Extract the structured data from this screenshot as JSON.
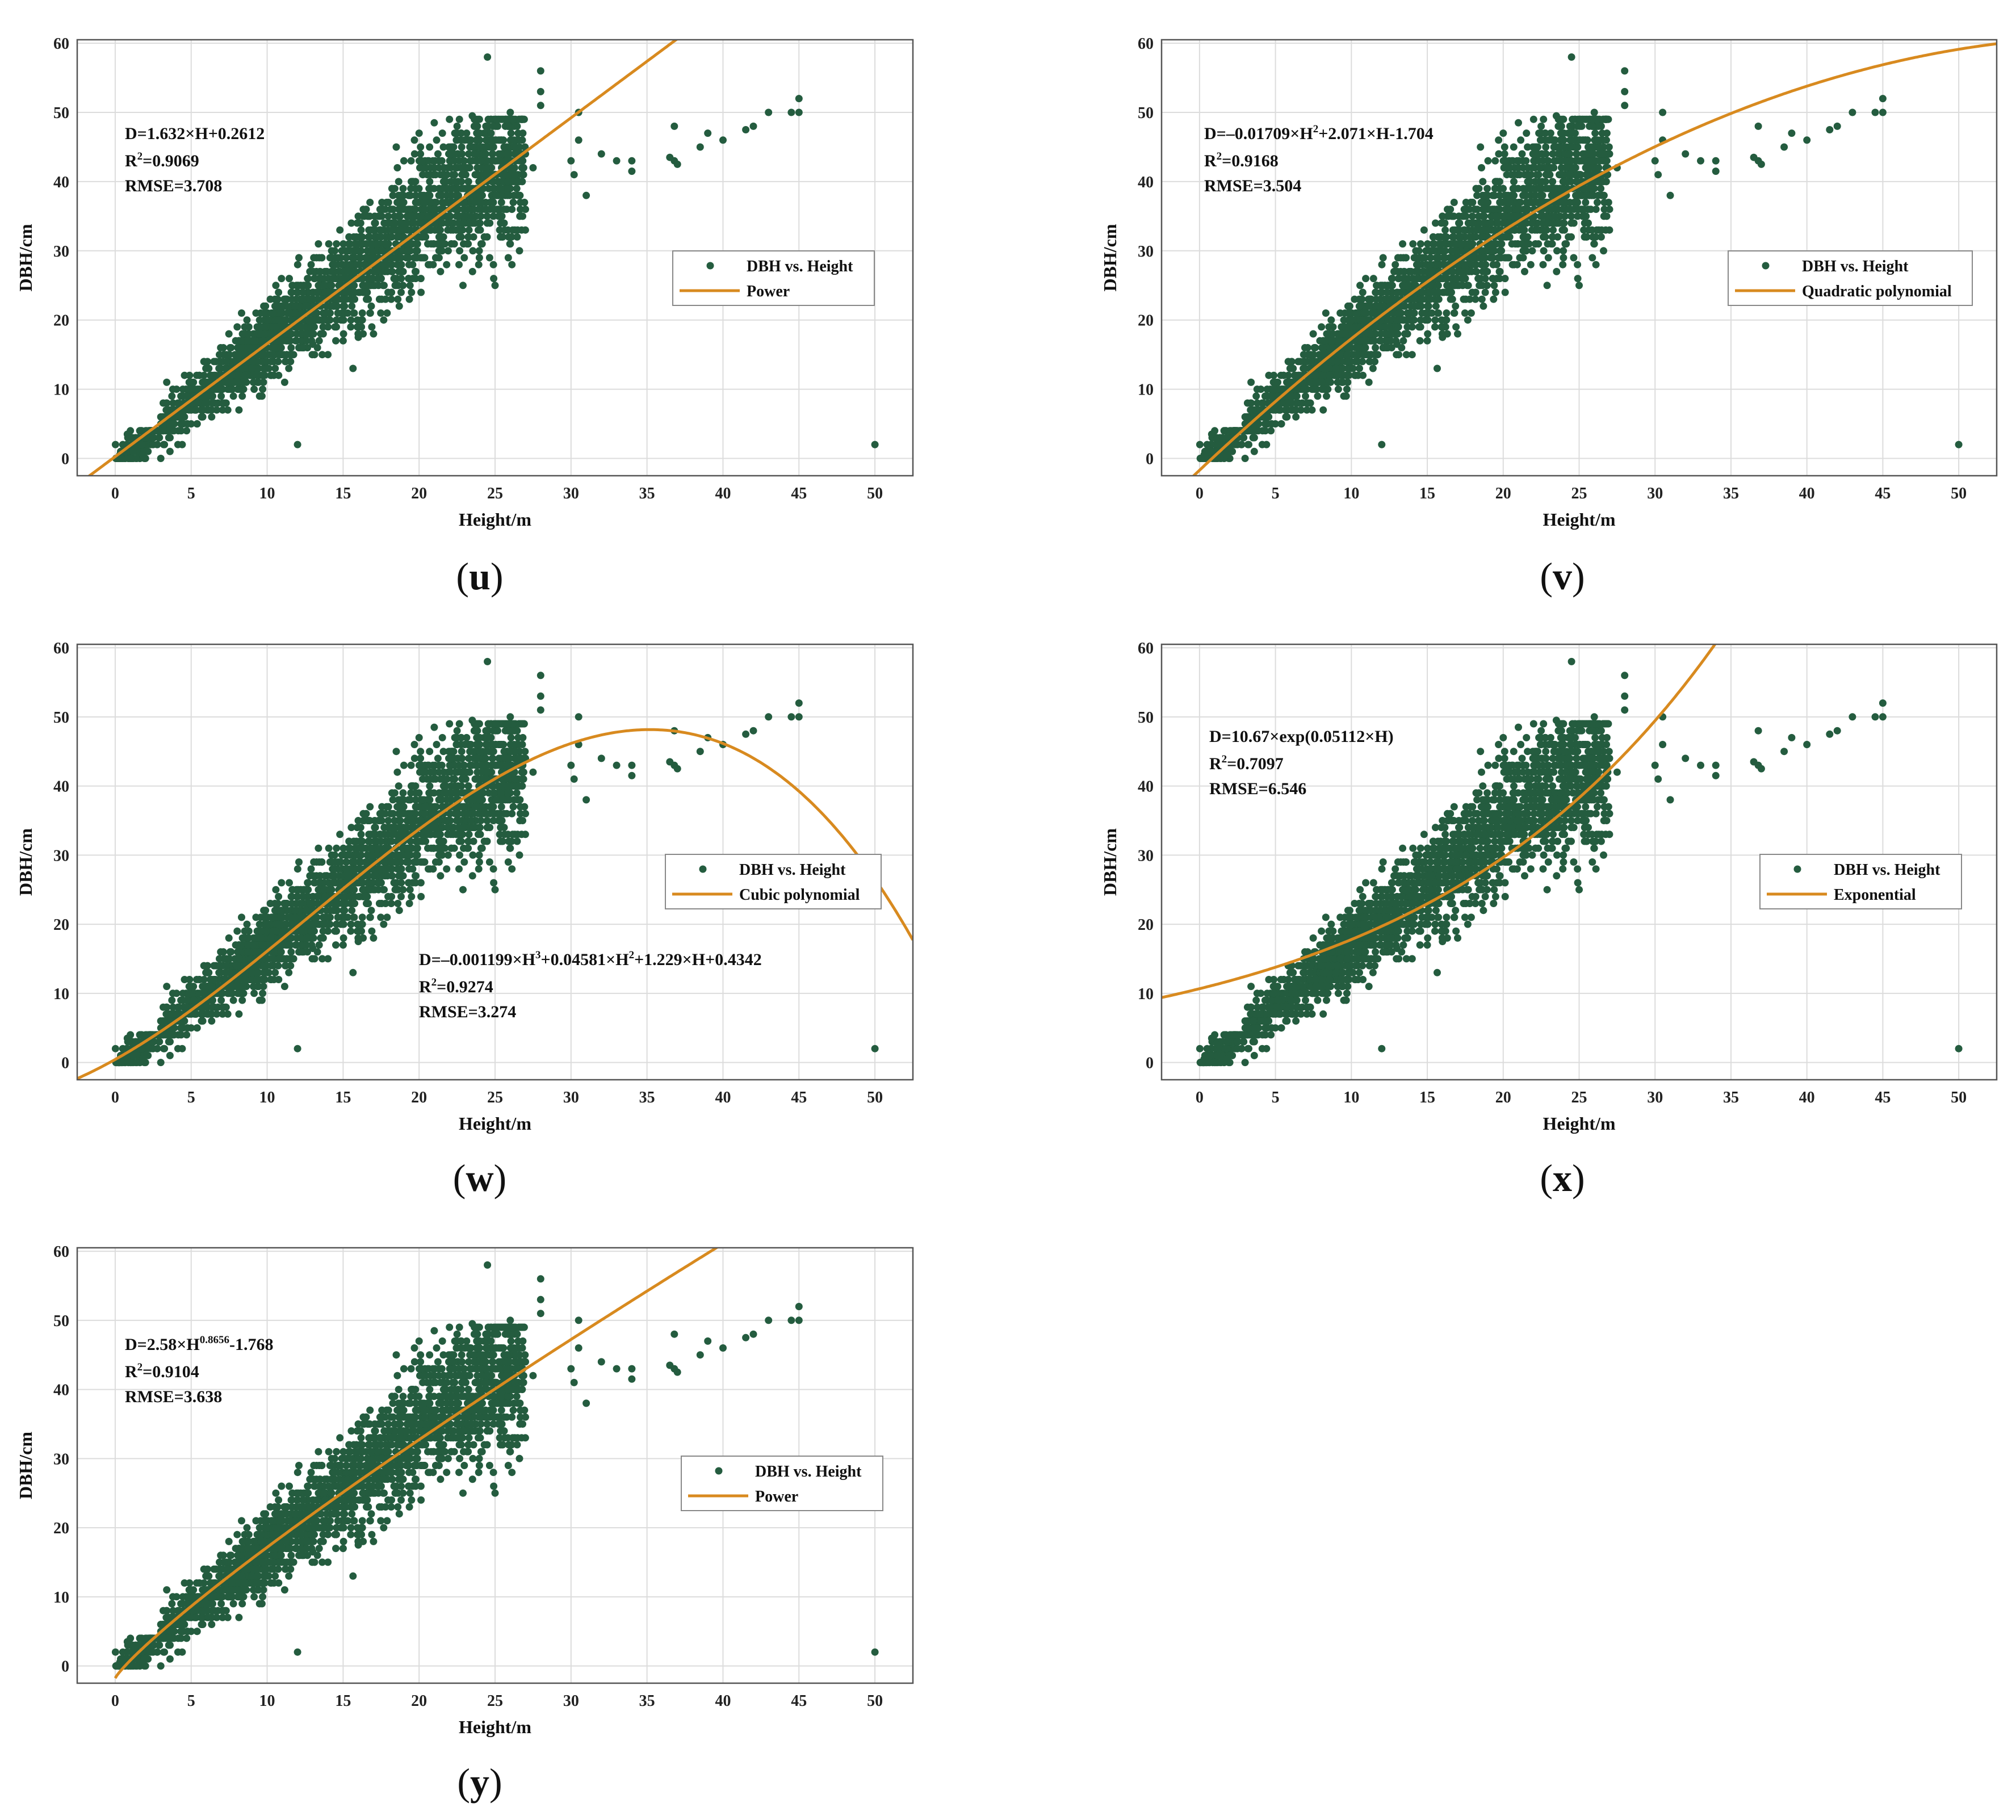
{
  "colors": {
    "points": "#245c3f",
    "fit": "#d88a1f",
    "grid": "#dcdcdc",
    "frame": "#555555"
  },
  "chart_data": [
    {
      "id": "u",
      "type": "scatter",
      "caption": "u",
      "title": "",
      "xlabel": "Height/m",
      "ylabel": "DBH/cm",
      "xlim": [
        -2.5,
        52.5
      ],
      "ylim": [
        -2.5,
        60.5
      ],
      "xticks": [
        0,
        5,
        10,
        15,
        20,
        25,
        30,
        35,
        40,
        45,
        50
      ],
      "yticks": [
        0,
        10,
        20,
        30,
        40,
        50,
        60
      ],
      "grid": true,
      "legend_position": "middle-right",
      "series": [
        {
          "name": "DBH vs. Height",
          "kind": "points"
        },
        {
          "name": "Power",
          "kind": "fit",
          "model": "linear",
          "params": [
            1.632,
            0.2612
          ]
        }
      ],
      "annotation": {
        "position": "top-left",
        "eq": [
          "D=1.632×H+0.2612"
        ],
        "r2_prefix": "R",
        "r2_sup": "2",
        "r2_value": "=0.9069",
        "rmse": "RMSE=3.708"
      }
    },
    {
      "id": "v",
      "type": "scatter",
      "caption": "v",
      "title": "",
      "xlabel": "Height/m",
      "ylabel": "DBH/cm",
      "xlim": [
        -2.5,
        52.5
      ],
      "ylim": [
        -2.5,
        60.5
      ],
      "xticks": [
        0,
        5,
        10,
        15,
        20,
        25,
        30,
        35,
        40,
        45,
        50
      ],
      "yticks": [
        0,
        10,
        20,
        30,
        40,
        50,
        60
      ],
      "grid": true,
      "legend_position": "middle-right",
      "series": [
        {
          "name": "DBH vs. Height",
          "kind": "points"
        },
        {
          "name": "Quadratic polynomial",
          "kind": "fit",
          "model": "quadratic",
          "params": [
            -0.01709,
            2.071,
            -1.704
          ]
        }
      ],
      "annotation": {
        "position": "top-left",
        "eq": [
          "D=–0.01709×H",
          "2",
          "+2.071×H-1.704"
        ],
        "r2_prefix": "R",
        "r2_sup": "2",
        "r2_value": "=0.9168",
        "rmse": "RMSE=3.504"
      }
    },
    {
      "id": "w",
      "type": "scatter",
      "caption": "w",
      "title": "",
      "xlabel": "Height/m",
      "ylabel": "DBH/cm",
      "xlim": [
        -2.5,
        52.5
      ],
      "ylim": [
        -2.5,
        60.5
      ],
      "xticks": [
        0,
        5,
        10,
        15,
        20,
        25,
        30,
        35,
        40,
        45,
        50
      ],
      "yticks": [
        0,
        10,
        20,
        30,
        40,
        50,
        60
      ],
      "grid": true,
      "legend_position": "middle-right",
      "series": [
        {
          "name": "DBH vs. Height",
          "kind": "points"
        },
        {
          "name": "Cubic polynomial",
          "kind": "fit",
          "model": "cubic",
          "params": [
            -0.001199,
            0.04581,
            1.229,
            0.4342
          ]
        }
      ],
      "annotation": {
        "position": "lower-middle",
        "eq": [
          "D=–0.001199×H",
          "3",
          "+0.04581×H",
          "2",
          "+1.229×H+0.4342"
        ],
        "r2_prefix": "R",
        "r2_sup": "2",
        "r2_value": "=0.9274",
        "rmse": "RMSE=3.274"
      }
    },
    {
      "id": "x",
      "type": "scatter",
      "caption": "x",
      "title": "",
      "xlabel": "Height/m",
      "ylabel": "DBH/cm",
      "xlim": [
        -2.5,
        52.5
      ],
      "ylim": [
        -2.5,
        60.5
      ],
      "xticks": [
        0,
        5,
        10,
        15,
        20,
        25,
        30,
        35,
        40,
        45,
        50
      ],
      "yticks": [
        0,
        10,
        20,
        30,
        40,
        50,
        60
      ],
      "grid": true,
      "legend_position": "middle-right",
      "series": [
        {
          "name": "DBH vs. Height",
          "kind": "points"
        },
        {
          "name": "Exponential",
          "kind": "fit",
          "model": "exponential",
          "params": [
            10.67,
            0.05112
          ]
        }
      ],
      "annotation": {
        "position": "top-left",
        "eq": [
          "D=10.67×exp(0.05112×H)"
        ],
        "r2_prefix": "R",
        "r2_sup": "2",
        "r2_value": "=0.7097",
        "rmse": "RMSE=6.546"
      }
    },
    {
      "id": "y",
      "type": "scatter",
      "caption": "y",
      "title": "",
      "xlabel": "Height/m",
      "ylabel": "DBH/cm",
      "xlim": [
        -2.5,
        52.5
      ],
      "ylim": [
        -2.5,
        60.5
      ],
      "xticks": [
        0,
        5,
        10,
        15,
        20,
        25,
        30,
        35,
        40,
        45,
        50
      ],
      "yticks": [
        0,
        10,
        20,
        30,
        40,
        50,
        60
      ],
      "grid": true,
      "legend_position": "middle-right",
      "series": [
        {
          "name": "DBH vs. Height",
          "kind": "points"
        },
        {
          "name": "Power",
          "kind": "fit",
          "model": "power",
          "params": [
            2.58,
            0.8656,
            -1.768
          ]
        }
      ],
      "annotation": {
        "position": "top-left",
        "eq": [
          "D=2.58×H",
          "0.8656",
          "-1.768"
        ],
        "r2_prefix": "R",
        "r2_sup": "2",
        "r2_value": "=0.9104",
        "rmse": "RMSE=3.638"
      }
    }
  ],
  "scatter_points": {
    "outliers": [
      [
        12,
        2
      ],
      [
        50,
        2
      ],
      [
        24.5,
        58
      ],
      [
        28,
        56
      ],
      [
        28,
        53
      ],
      [
        28,
        51
      ],
      [
        30.5,
        50
      ],
      [
        30.5,
        46
      ],
      [
        30,
        43
      ],
      [
        30.2,
        41
      ],
      [
        31,
        38
      ],
      [
        32,
        44
      ],
      [
        33,
        43
      ],
      [
        34,
        43
      ],
      [
        34,
        41.5
      ],
      [
        36.8,
        48
      ],
      [
        36.8,
        43
      ],
      [
        37,
        42.5
      ],
      [
        36.5,
        43.5
      ],
      [
        38.5,
        45
      ],
      [
        39,
        47
      ],
      [
        40,
        46
      ],
      [
        41.5,
        47.5
      ],
      [
        42,
        48
      ],
      [
        43,
        50
      ],
      [
        44.5,
        50
      ],
      [
        45,
        52
      ],
      [
        45,
        50
      ],
      [
        26.5,
        38
      ],
      [
        27,
        36
      ],
      [
        25.5,
        32
      ],
      [
        26,
        31
      ],
      [
        25,
        25
      ],
      [
        23,
        46
      ],
      [
        24,
        47
      ],
      [
        25.5,
        49
      ],
      [
        26,
        50
      ],
      [
        27,
        44
      ],
      [
        22,
        49
      ],
      [
        21,
        48.5
      ],
      [
        20,
        47
      ],
      [
        18.5,
        45
      ],
      [
        19,
        43
      ],
      [
        22.5,
        48
      ],
      [
        23.5,
        49.5
      ],
      [
        26.5,
        44
      ],
      [
        27.5,
        42
      ],
      [
        24,
        38
      ],
      [
        25,
        43
      ],
      [
        17,
        18
      ],
      [
        16,
        17.5
      ],
      [
        15,
        17
      ],
      [
        14,
        15
      ],
      [
        13,
        16.5
      ],
      [
        3,
        6
      ],
      [
        2,
        4
      ],
      [
        1,
        4
      ],
      [
        1.5,
        3
      ],
      [
        0.5,
        2
      ],
      [
        0.3,
        0.5
      ],
      [
        0.7,
        1
      ],
      [
        1,
        0
      ],
      [
        2,
        1
      ],
      [
        3,
        0
      ],
      [
        1.3,
        2.5
      ],
      [
        2.5,
        3
      ],
      [
        0.8,
        3.5
      ],
      [
        1.8,
        0.5
      ]
    ]
  }
}
